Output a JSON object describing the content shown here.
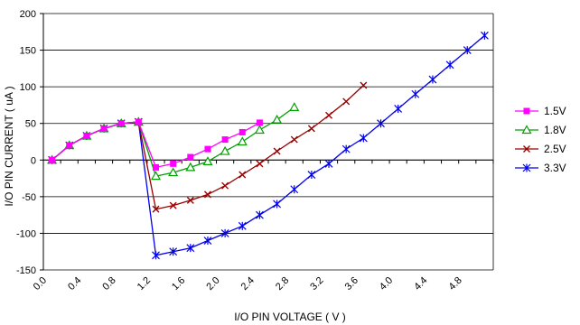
{
  "chart_data": {
    "type": "line",
    "xlabel": "I/O PIN VOLTAGE ( V )",
    "ylabel": "I/O PIN CURRENT ( uA )",
    "xlim": [
      0,
      5.2
    ],
    "ylim": [
      -150,
      200
    ],
    "x_ticks": [
      "0.0",
      "0.4",
      "0.8",
      "1.2",
      "1.6",
      "2.0",
      "2.4",
      "2.8",
      "3.2",
      "3.6",
      "4.0",
      "4.4",
      "4.8"
    ],
    "y_ticks": [
      "200",
      "150",
      "100",
      "50",
      "0",
      "-50",
      "-100",
      "-150"
    ],
    "grid": "horizontal",
    "legend": "right",
    "series": [
      {
        "name": "1.5V",
        "color": "#ff00ff",
        "marker": "square",
        "x": [
          0.1,
          0.3,
          0.5,
          0.7,
          0.9,
          1.1,
          1.3,
          1.5,
          1.7,
          1.9,
          2.1,
          2.3,
          2.5
        ],
        "y": [
          0,
          20,
          33,
          43,
          50,
          52,
          -10,
          -5,
          4,
          15,
          28,
          38,
          51
        ]
      },
      {
        "name": "1.8V",
        "color": "#00a000",
        "marker": "triangle",
        "x": [
          0.1,
          0.3,
          0.5,
          0.7,
          0.9,
          1.1,
          1.3,
          1.5,
          1.7,
          1.9,
          2.1,
          2.3,
          2.5,
          2.7,
          2.9
        ],
        "y": [
          0,
          20,
          33,
          43,
          50,
          52,
          -22,
          -17,
          -10,
          -2,
          12,
          25,
          41,
          55,
          72
        ]
      },
      {
        "name": "2.5V",
        "color": "#990000",
        "marker": "x",
        "x": [
          0.1,
          0.3,
          0.5,
          0.7,
          0.9,
          1.1,
          1.3,
          1.5,
          1.7,
          1.9,
          2.1,
          2.3,
          2.5,
          2.7,
          2.9,
          3.1,
          3.3,
          3.5,
          3.7
        ],
        "y": [
          0,
          20,
          33,
          43,
          50,
          52,
          -67,
          -62,
          -55,
          -47,
          -35,
          -20,
          -5,
          12,
          28,
          43,
          61,
          80,
          102
        ]
      },
      {
        "name": "3.3V",
        "color": "#0000ee",
        "marker": "star",
        "x": [
          0.1,
          0.3,
          0.5,
          0.7,
          0.9,
          1.1,
          1.3,
          1.5,
          1.7,
          1.9,
          2.1,
          2.3,
          2.5,
          2.7,
          2.9,
          3.1,
          3.3,
          3.5,
          3.7,
          3.9,
          4.1,
          4.3,
          4.5,
          4.7,
          4.9,
          5.1
        ],
        "y": [
          0,
          20,
          33,
          43,
          50,
          52,
          -130,
          -125,
          -120,
          -110,
          -100,
          -90,
          -75,
          -60,
          -40,
          -20,
          -5,
          15,
          30,
          50,
          70,
          90,
          110,
          130,
          150,
          170
        ]
      }
    ]
  }
}
